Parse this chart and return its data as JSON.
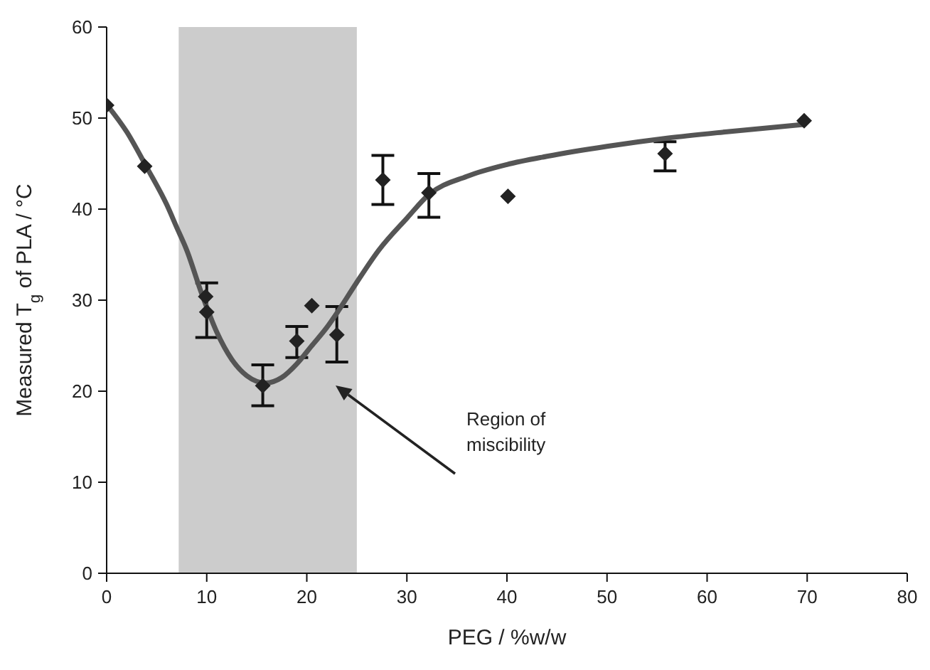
{
  "chart_data": {
    "type": "scatter",
    "xlabel": "PEG / %w/w",
    "ylabel": "Measured T$_{g}$ of PLA / °C",
    "xlim": [
      0,
      80
    ],
    "xticks": [
      0,
      10,
      20,
      30,
      40,
      50,
      60,
      70,
      80
    ],
    "ylim": [
      0,
      60
    ],
    "yticks": [
      0,
      10,
      20,
      30,
      40,
      50,
      60
    ],
    "marker": "diamond",
    "series": [
      {
        "color": "#222222",
        "x": [
          0,
          3.8,
          9.9,
          10,
          15.6,
          19,
          20.5,
          23,
          27.6,
          32.2,
          40.1,
          55.8,
          69.7
        ],
        "values": [
          51.4,
          44.7,
          30.4,
          28.7,
          20.6,
          25.5,
          29.4,
          26.2,
          43.2,
          41.8,
          41.4,
          46.1,
          49.7
        ],
        "errors": [
          null,
          null,
          null,
          [
            25.9,
            31.9
          ],
          [
            18.4,
            22.9
          ],
          [
            23.7,
            27.1
          ],
          null,
          [
            23.2,
            29.3
          ],
          [
            40.5,
            45.9
          ],
          [
            39.1,
            43.9
          ],
          null,
          [
            44.2,
            47.4
          ],
          null
        ]
      },
      {
        "type": "line",
        "color": "#555555",
        "line_style": "solid",
        "marker": "none",
        "x": [
          0,
          2,
          4,
          6,
          7,
          8,
          9.5,
          11,
          12.5,
          14,
          15.9,
          17.5,
          19,
          20.5,
          22,
          23.2,
          24.9,
          27.2,
          30,
          32.2,
          36,
          40,
          44,
          50,
          56,
          62,
          69.7
        ],
        "values": [
          51.5,
          48.5,
          44.6,
          40.5,
          38,
          35.5,
          30.7,
          26.5,
          23.5,
          21.7,
          20.9,
          21.5,
          23,
          25,
          27,
          28.9,
          31.8,
          35.5,
          39,
          41.6,
          43.6,
          44.9,
          45.8,
          46.9,
          47.8,
          48.5,
          49.3
        ]
      }
    ],
    "bands": [
      {
        "axis": "x",
        "from": 7.2,
        "to": 25,
        "color": "#cccccc"
      }
    ],
    "annotations": [
      "Region of miscibility"
    ]
  }
}
